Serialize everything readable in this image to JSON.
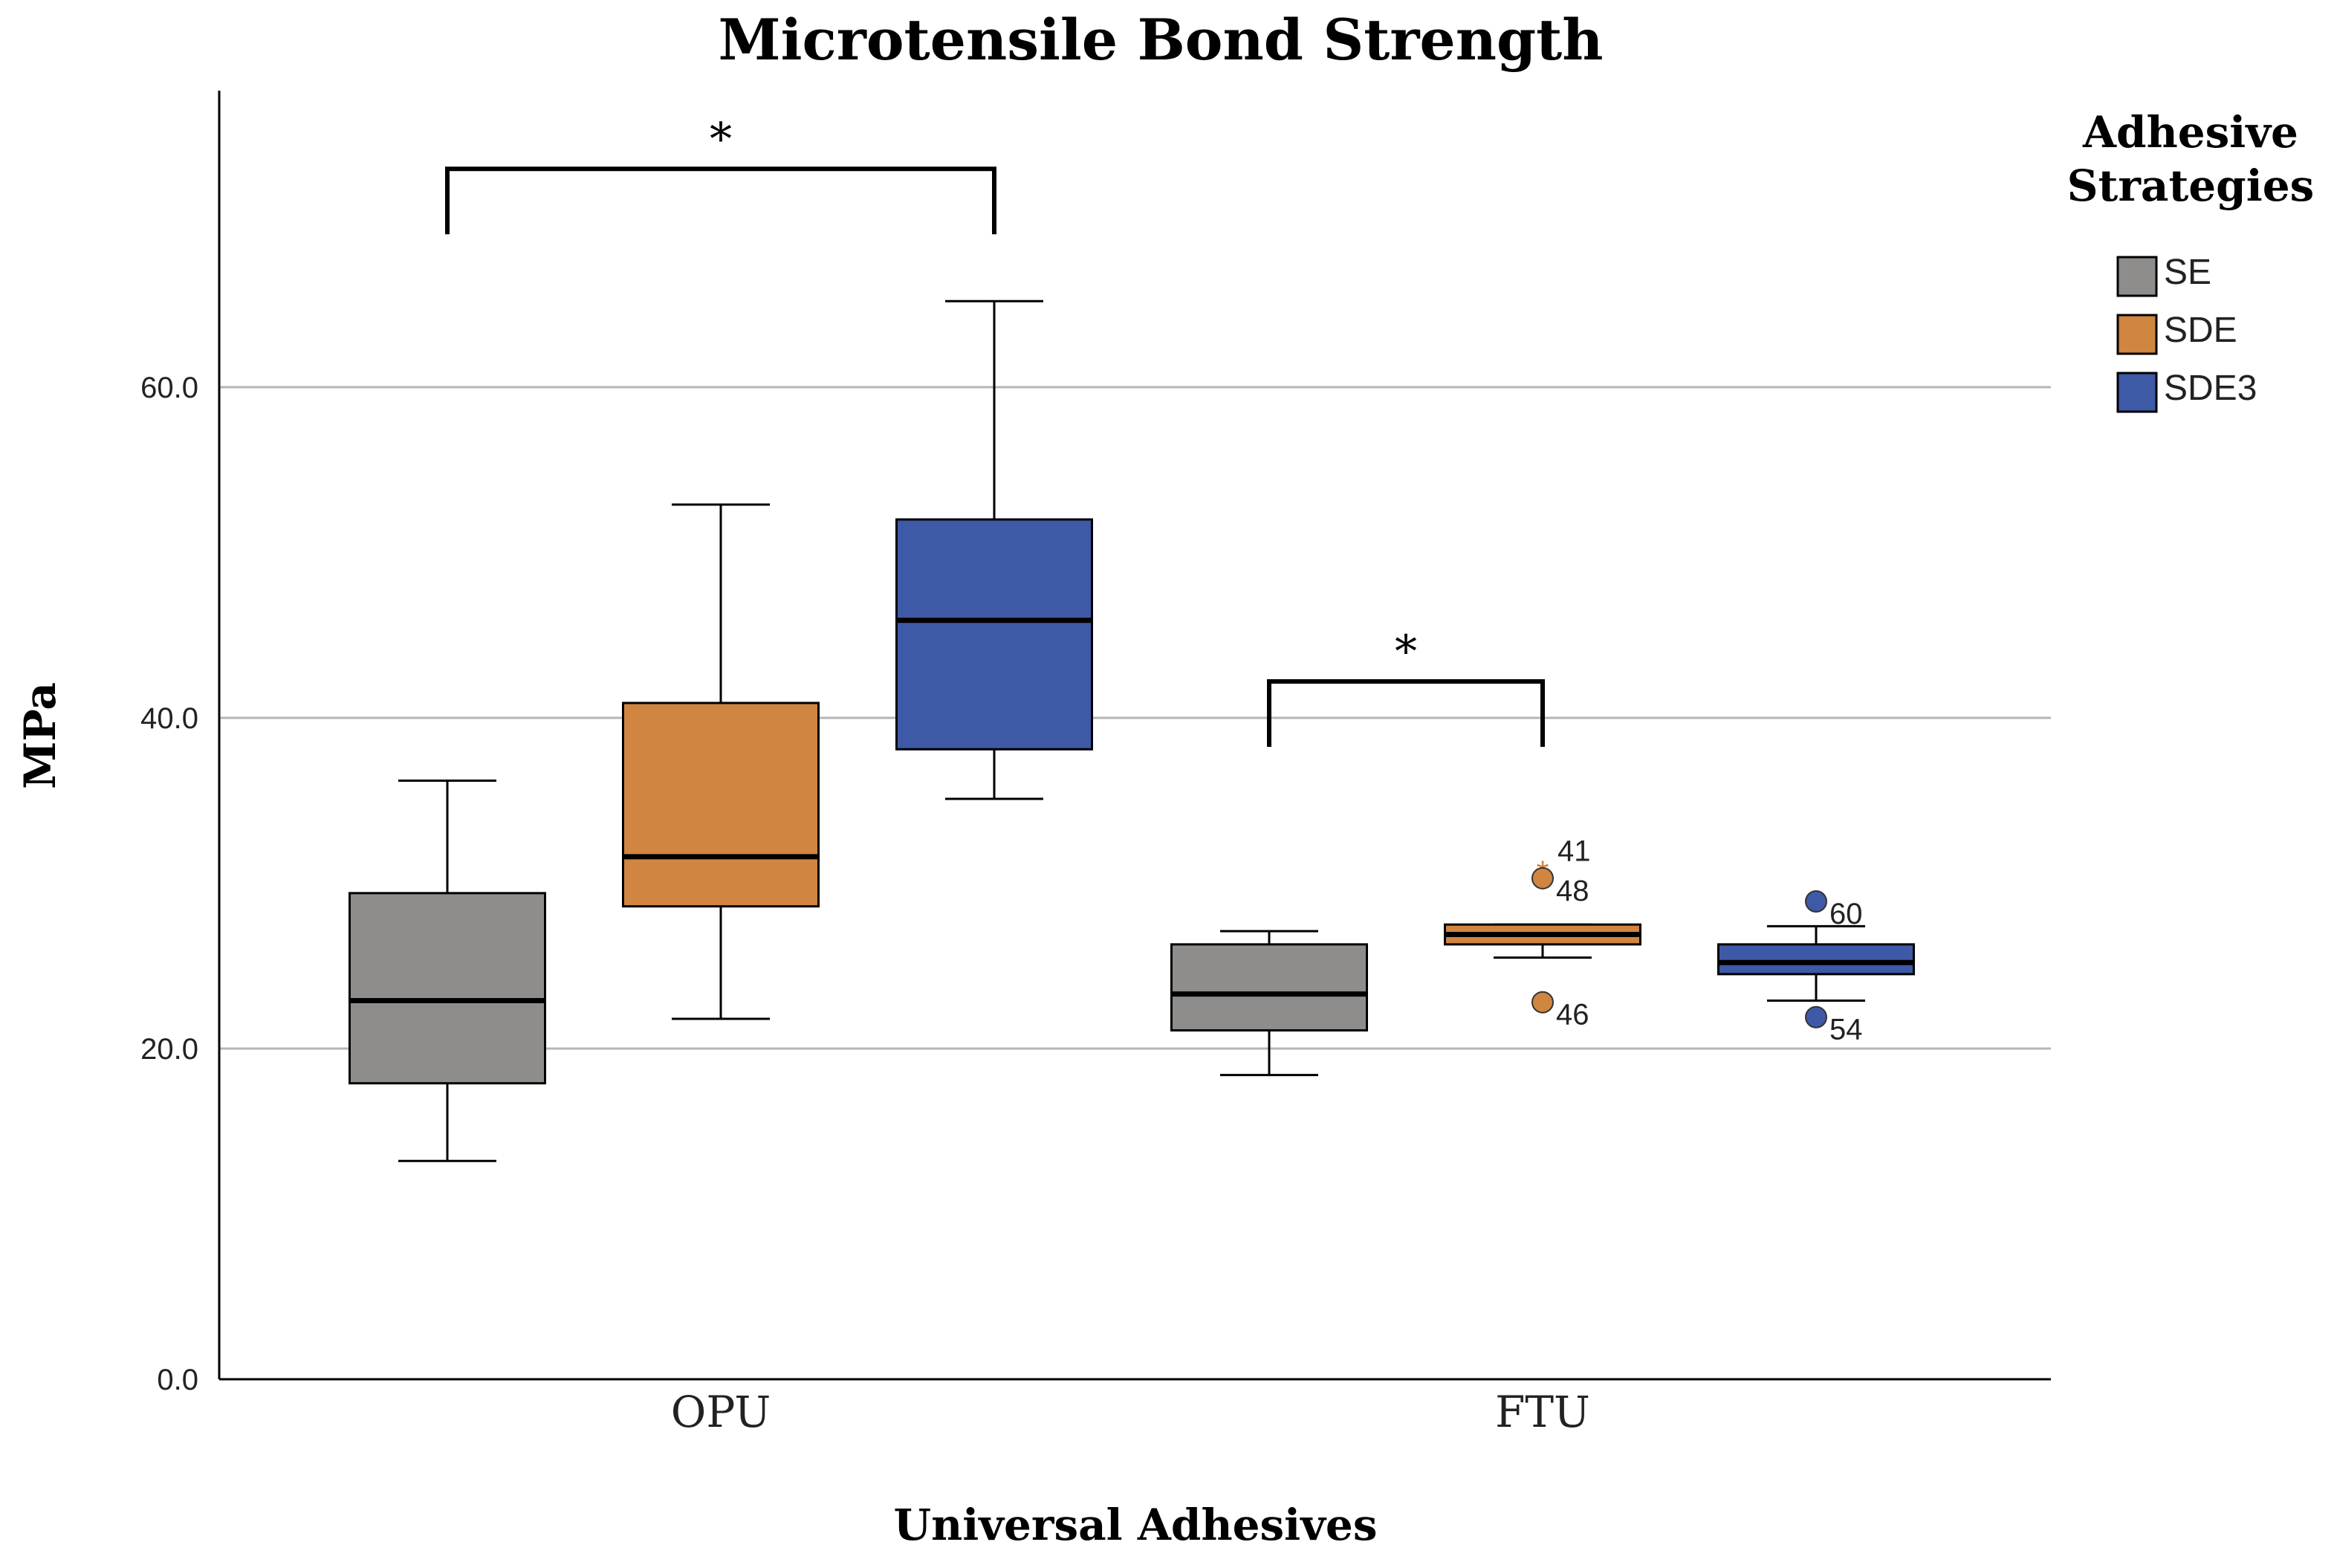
{
  "chart_data": {
    "type": "box",
    "title": "Microtensile Bond Strength",
    "xlabel": "Universal Adhesives",
    "ylabel": "MPa",
    "ylim": [
      0,
      78
    ],
    "yticks": [
      0,
      20,
      40,
      60
    ],
    "ytick_labels": [
      "0.0",
      "20.0",
      "40.0",
      "60.0"
    ],
    "grid": true,
    "categories": [
      "OPU",
      "FTU"
    ],
    "legend": {
      "title_lines": [
        "Adhesive",
        "Strategies"
      ],
      "position": "right"
    },
    "series": [
      {
        "name": "SE",
        "color": "#8f8d8c",
        "boxes": [
          {
            "category": "OPU",
            "min": 13.2,
            "q1": 17.9,
            "median": 22.9,
            "q3": 29.4,
            "max": 36.2,
            "outliers": []
          },
          {
            "category": "FTU",
            "min": 18.4,
            "q1": 21.1,
            "median": 23.3,
            "q3": 26.3,
            "max": 27.1,
            "outliers": []
          }
        ]
      },
      {
        "name": "SDE",
        "color": "#d08540",
        "boxes": [
          {
            "category": "OPU",
            "min": 21.8,
            "q1": 28.6,
            "median": 31.6,
            "q3": 40.9,
            "max": 52.9,
            "outliers": []
          },
          {
            "category": "FTU",
            "min": 25.5,
            "q1": 26.3,
            "median": 26.9,
            "q3": 27.5,
            "max": 27.5,
            "outliers": [
              {
                "value": 31.0,
                "label": "41",
                "kind": "extreme"
              },
              {
                "value": 30.3,
                "label": "48",
                "kind": "outlier"
              },
              {
                "value": 22.8,
                "label": "46",
                "kind": "outlier"
              }
            ]
          }
        ]
      },
      {
        "name": "SDE3",
        "color": "#3e59a6",
        "boxes": [
          {
            "category": "OPU",
            "min": 35.1,
            "q1": 38.1,
            "median": 45.9,
            "q3": 52.0,
            "max": 65.2,
            "outliers": []
          },
          {
            "category": "FTU",
            "min": 22.9,
            "q1": 24.5,
            "median": 25.2,
            "q3": 26.3,
            "max": 27.4,
            "outliers": [
              {
                "value": 28.9,
                "label": "60",
                "kind": "outlier"
              },
              {
                "value": 21.9,
                "label": "54",
                "kind": "outlier"
              }
            ]
          }
        ]
      }
    ],
    "significance": [
      {
        "label": "*",
        "category": "OPU",
        "from": "SE",
        "to": "SDE3",
        "level": 73.2
      },
      {
        "label": "*",
        "category": "FTU",
        "from": "SE",
        "to": "SDE",
        "level": 42.2
      }
    ]
  }
}
